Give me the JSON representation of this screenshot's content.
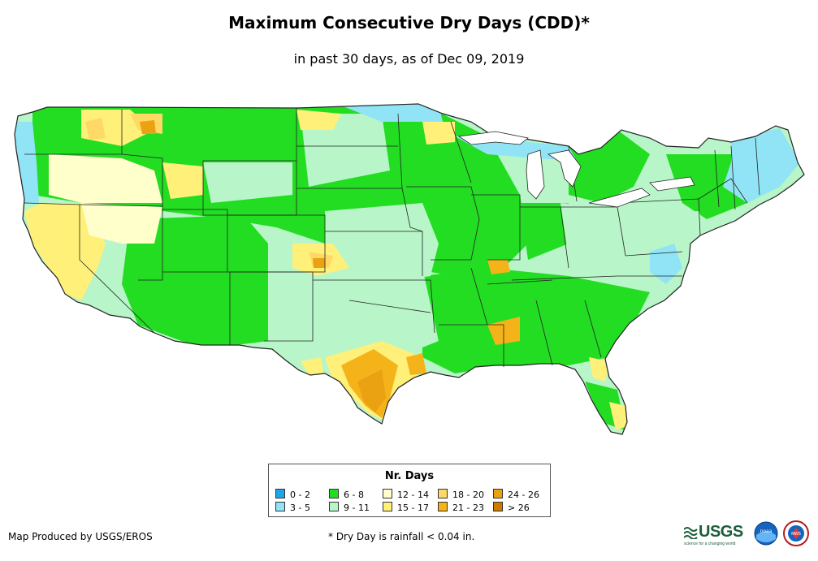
{
  "title": "Maximum Consecutive Dry Days (CDD)*",
  "subtitle": "in past 30 days, as of Dec 09, 2019",
  "legend": {
    "title": "Nr. Days",
    "items": [
      {
        "label": "0 - 2",
        "color": "#1ea7e8"
      },
      {
        "label": "3 - 5",
        "color": "#90e4f5"
      },
      {
        "label": "6 - 8",
        "color": "#22dd22"
      },
      {
        "label": "9 - 11",
        "color": "#b8f5c8"
      },
      {
        "label": "12 - 14",
        "color": "#ffffcc"
      },
      {
        "label": "15 - 17",
        "color": "#fff07a"
      },
      {
        "label": "18 - 20",
        "color": "#ffd966"
      },
      {
        "label": "21 - 23",
        "color": "#f5b31a"
      },
      {
        "label": "24 - 26",
        "color": "#eaa112"
      },
      {
        "label": "> 26",
        "color": "#cc7a00"
      }
    ]
  },
  "credit": "Map Produced by USGS/EROS",
  "footnote": "* Dry Day is rainfall < 0.04 in.",
  "logos": {
    "usgs_text": "USGS",
    "usgs_tagline": "science for a changing world",
    "noaa_text": "noaa",
    "nws_text": "NWS"
  }
}
